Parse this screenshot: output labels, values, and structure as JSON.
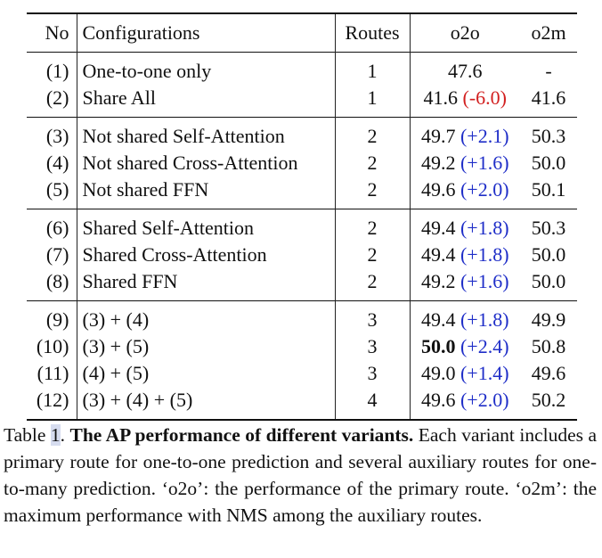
{
  "table": {
    "headers": {
      "no": "No",
      "configurations": "Configurations",
      "routes": "Routes",
      "o2o": "o2o",
      "o2m": "o2m"
    },
    "groups": [
      [
        {
          "no": "(1)",
          "config": "One-to-one only",
          "routes": "1",
          "o2o": "47.6",
          "delta": "",
          "delta_sign": "",
          "o2m": "-",
          "bold": false
        },
        {
          "no": "(2)",
          "config": "Share All",
          "routes": "1",
          "o2o": "41.6",
          "delta": "(-6.0)",
          "delta_sign": "neg",
          "o2m": "41.6",
          "bold": false
        }
      ],
      [
        {
          "no": "(3)",
          "config": "Not shared Self-Attention",
          "routes": "2",
          "o2o": "49.7",
          "delta": "(+2.1)",
          "delta_sign": "pos",
          "o2m": "50.3",
          "bold": false
        },
        {
          "no": "(4)",
          "config": "Not shared Cross-Attention",
          "routes": "2",
          "o2o": "49.2",
          "delta": "(+1.6)",
          "delta_sign": "pos",
          "o2m": "50.0",
          "bold": false
        },
        {
          "no": "(5)",
          "config": "Not shared FFN",
          "routes": "2",
          "o2o": "49.6",
          "delta": "(+2.0)",
          "delta_sign": "pos",
          "o2m": "50.1",
          "bold": false
        }
      ],
      [
        {
          "no": "(6)",
          "config": "Shared Self-Attention",
          "routes": "2",
          "o2o": "49.4",
          "delta": "(+1.8)",
          "delta_sign": "pos",
          "o2m": "50.3",
          "bold": false
        },
        {
          "no": "(7)",
          "config": "Shared Cross-Attention",
          "routes": "2",
          "o2o": "49.4",
          "delta": "(+1.8)",
          "delta_sign": "pos",
          "o2m": "50.0",
          "bold": false
        },
        {
          "no": "(8)",
          "config": "Shared FFN",
          "routes": "2",
          "o2o": "49.2",
          "delta": "(+1.6)",
          "delta_sign": "pos",
          "o2m": "50.0",
          "bold": false
        }
      ],
      [
        {
          "no": "(9)",
          "config": "(3) + (4)",
          "routes": "3",
          "o2o": "49.4",
          "delta": "(+1.8)",
          "delta_sign": "pos",
          "o2m": "49.9",
          "bold": false
        },
        {
          "no": "(10)",
          "config": "(3) + (5)",
          "routes": "3",
          "o2o": "50.0",
          "delta": "(+2.4)",
          "delta_sign": "pos",
          "o2m": "50.8",
          "bold": true
        },
        {
          "no": "(11)",
          "config": "(4) + (5)",
          "routes": "3",
          "o2o": "49.0",
          "delta": "(+1.4)",
          "delta_sign": "pos",
          "o2m": "49.6",
          "bold": false
        },
        {
          "no": "(12)",
          "config": "(3) + (4) + (5)",
          "routes": "4",
          "o2o": "49.6",
          "delta": "(+2.0)",
          "delta_sign": "pos",
          "o2m": "50.2",
          "bold": false
        }
      ]
    ],
    "colors": {
      "positive_delta": "#1f2ec8",
      "negative_delta": "#d21f1f",
      "table_number_highlight": "#d6dcef"
    }
  },
  "caption": {
    "label": "Table ",
    "number": "1",
    "separator": ". ",
    "title": "The AP performance of different variants.",
    "body": " Each variant includes a primary route for one-to-one prediction and several auxiliary routes for one-to-many prediction. ‘o2o’: the performance of the primary route. ‘o2m’: the maximum performance with NMS among the auxiliary routes."
  }
}
